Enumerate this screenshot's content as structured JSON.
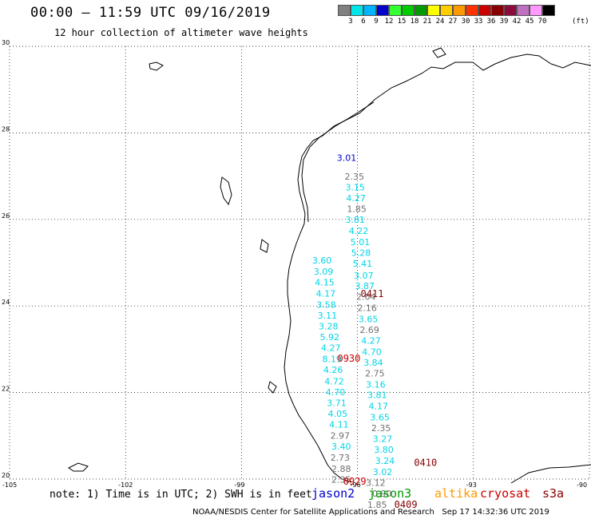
{
  "header": {
    "title": "00:00 – 11:59 UTC 09/16/2019",
    "subtitle": "12 hour collection of altimeter wave heights"
  },
  "colorbar": {
    "colors": [
      "#808080",
      "#00e6e6",
      "#00b4ff",
      "#0000cc",
      "#33ff33",
      "#00cc00",
      "#009900",
      "#ffff00",
      "#ffcc00",
      "#ff9900",
      "#ff3300",
      "#cc0000",
      "#880000",
      "#8c0a3c",
      "#c070c0",
      "#ff99ff",
      "#000000"
    ],
    "ticks": [
      "3",
      "6",
      "9",
      "12",
      "15",
      "18",
      "21",
      "24",
      "27",
      "30",
      "33",
      "36",
      "39",
      "42",
      "45",
      "70"
    ],
    "unit": "(ft)"
  },
  "axes": {
    "lat_ticks": [
      "30",
      "28",
      "26",
      "24",
      "22",
      "20"
    ],
    "lon_ticks": [
      "-105",
      "-102",
      "-99",
      "-96",
      "-93",
      "-90"
    ]
  },
  "colors": {
    "jason2": "#0000cc",
    "jason3": "#009900",
    "altika": "#ff9900",
    "cryosat": "#cc0000",
    "s3a": "#880000",
    "cyan_track": "#00d5e6",
    "gray_track": "#707070"
  },
  "observations": [
    {
      "lon": -96.28,
      "lat": 27.35,
      "v": "3.01",
      "c": "jason2"
    },
    {
      "lon": -96.08,
      "lat": 26.92,
      "v": "2.35",
      "c": "gray"
    },
    {
      "lon": -96.06,
      "lat": 26.67,
      "v": "3.15",
      "c": "cyan"
    },
    {
      "lon": -96.04,
      "lat": 26.42,
      "v": "4.27",
      "c": "cyan"
    },
    {
      "lon": -96.02,
      "lat": 26.17,
      "v": "1.85",
      "c": "gray"
    },
    {
      "lon": -96.06,
      "lat": 25.92,
      "v": "3.81",
      "c": "cyan"
    },
    {
      "lon": -95.97,
      "lat": 25.66,
      "v": "4.22",
      "c": "cyan"
    },
    {
      "lon": -95.93,
      "lat": 25.41,
      "v": "5.01",
      "c": "cyan"
    },
    {
      "lon": -95.91,
      "lat": 25.16,
      "v": "5.28",
      "c": "cyan"
    },
    {
      "lon": -95.87,
      "lat": 24.91,
      "v": "5.41",
      "c": "cyan"
    },
    {
      "lon": -95.84,
      "lat": 24.63,
      "v": "3.07",
      "c": "cyan"
    },
    {
      "lon": -95.81,
      "lat": 24.39,
      "v": "3.87",
      "c": "cyan"
    },
    {
      "lon": -95.78,
      "lat": 24.14,
      "v": "2.64",
      "c": "gray"
    },
    {
      "lon": -95.75,
      "lat": 23.88,
      "v": "2.16",
      "c": "gray"
    },
    {
      "lon": -95.72,
      "lat": 23.63,
      "v": "3.65",
      "c": "cyan"
    },
    {
      "lon": -95.69,
      "lat": 23.38,
      "v": "2.69",
      "c": "gray"
    },
    {
      "lon": -95.65,
      "lat": 23.13,
      "v": "4.27",
      "c": "cyan"
    },
    {
      "lon": -95.63,
      "lat": 22.87,
      "v": "4.70",
      "c": "cyan"
    },
    {
      "lon": -95.59,
      "lat": 22.62,
      "v": "3.84",
      "c": "cyan"
    },
    {
      "lon": -95.55,
      "lat": 22.37,
      "v": "2.75",
      "c": "gray"
    },
    {
      "lon": -95.53,
      "lat": 22.11,
      "v": "3.16",
      "c": "cyan"
    },
    {
      "lon": -95.49,
      "lat": 21.87,
      "v": "3.81",
      "c": "cyan"
    },
    {
      "lon": -95.46,
      "lat": 21.61,
      "v": "4.17",
      "c": "cyan"
    },
    {
      "lon": -95.42,
      "lat": 21.36,
      "v": "3.65",
      "c": "cyan"
    },
    {
      "lon": -95.39,
      "lat": 21.11,
      "v": "2.35",
      "c": "gray"
    },
    {
      "lon": -95.35,
      "lat": 20.86,
      "v": "3.27",
      "c": "cyan"
    },
    {
      "lon": -95.32,
      "lat": 20.61,
      "v": "3.80",
      "c": "cyan"
    },
    {
      "lon": -95.29,
      "lat": 20.35,
      "v": "3.24",
      "c": "cyan"
    },
    {
      "lon": -95.35,
      "lat": 20.09,
      "v": "3.02",
      "c": "cyan"
    },
    {
      "lon": -95.53,
      "lat": 19.84,
      "v": "3.12",
      "c": "gray"
    },
    {
      "lon": -95.37,
      "lat": 19.59,
      "v": "0.90",
      "c": "gray"
    },
    {
      "lon": -95.49,
      "lat": 19.34,
      "v": "1.85",
      "c": "gray"
    },
    {
      "lon": -96.92,
      "lat": 24.98,
      "v": "3.60",
      "c": "cyan"
    },
    {
      "lon": -96.88,
      "lat": 24.72,
      "v": "3.09",
      "c": "cyan"
    },
    {
      "lon": -96.85,
      "lat": 24.47,
      "v": "4.15",
      "c": "cyan"
    },
    {
      "lon": -96.82,
      "lat": 24.22,
      "v": "4.17",
      "c": "cyan"
    },
    {
      "lon": -96.81,
      "lat": 23.96,
      "v": "3.58",
      "c": "cyan"
    },
    {
      "lon": -96.78,
      "lat": 23.71,
      "v": "3.11",
      "c": "cyan"
    },
    {
      "lon": -96.75,
      "lat": 23.46,
      "v": "3.28",
      "c": "cyan"
    },
    {
      "lon": -96.72,
      "lat": 23.21,
      "v": "5.92",
      "c": "cyan"
    },
    {
      "lon": -96.69,
      "lat": 22.96,
      "v": "4.27",
      "c": "cyan"
    },
    {
      "lon": -96.66,
      "lat": 22.7,
      "v": "8.19",
      "c": "cyan"
    },
    {
      "lon": -96.63,
      "lat": 22.45,
      "v": "4.26",
      "c": "cyan"
    },
    {
      "lon": -96.6,
      "lat": 22.19,
      "v": "4.72",
      "c": "cyan"
    },
    {
      "lon": -96.57,
      "lat": 21.94,
      "v": "4.70",
      "c": "cyan"
    },
    {
      "lon": -96.54,
      "lat": 21.69,
      "v": "3.71",
      "c": "cyan"
    },
    {
      "lon": -96.51,
      "lat": 21.44,
      "v": "4.05",
      "c": "cyan"
    },
    {
      "lon": -96.48,
      "lat": 21.19,
      "v": "4.11",
      "c": "cyan"
    },
    {
      "lon": -96.45,
      "lat": 20.93,
      "v": "2.97",
      "c": "gray"
    },
    {
      "lon": -96.42,
      "lat": 20.68,
      "v": "3.40",
      "c": "cyan"
    },
    {
      "lon": -96.45,
      "lat": 20.42,
      "v": "2.73",
      "c": "gray"
    },
    {
      "lon": -96.42,
      "lat": 20.17,
      "v": "2.88",
      "c": "gray"
    },
    {
      "lon": -96.42,
      "lat": 19.92,
      "v": "2.35",
      "c": "gray"
    }
  ],
  "time_labels": [
    {
      "lon": -95.62,
      "lat": 24.21,
      "t": "0411",
      "c": "s3a"
    },
    {
      "lon": -96.22,
      "lat": 22.71,
      "t": "0930",
      "c": "cryosat"
    },
    {
      "lon": -94.24,
      "lat": 20.3,
      "t": "0410",
      "c": "s3a"
    },
    {
      "lon": -96.07,
      "lat": 19.87,
      "t": "0929",
      "c": "cryosat"
    },
    {
      "lon": -94.75,
      "lat": 19.34,
      "t": "0409",
      "c": "s3a"
    }
  ],
  "footer": {
    "note": "note: 1) Time is in UTC; 2) SWH is in feet",
    "legend": [
      {
        "label": "jason2",
        "color": "#0000cc"
      },
      {
        "label": "jason3",
        "color": "#009900"
      },
      {
        "label": "altika",
        "color": "#ff9900"
      },
      {
        "label": "cryosat",
        "color": "#cc0000"
      },
      {
        "label": "s3a",
        "color": "#880000"
      }
    ],
    "credit": "NOAA/NESDIS Center for Satellite Applications and Research",
    "timestamp": "Sep 17 14:32:36 UTC 2019"
  }
}
